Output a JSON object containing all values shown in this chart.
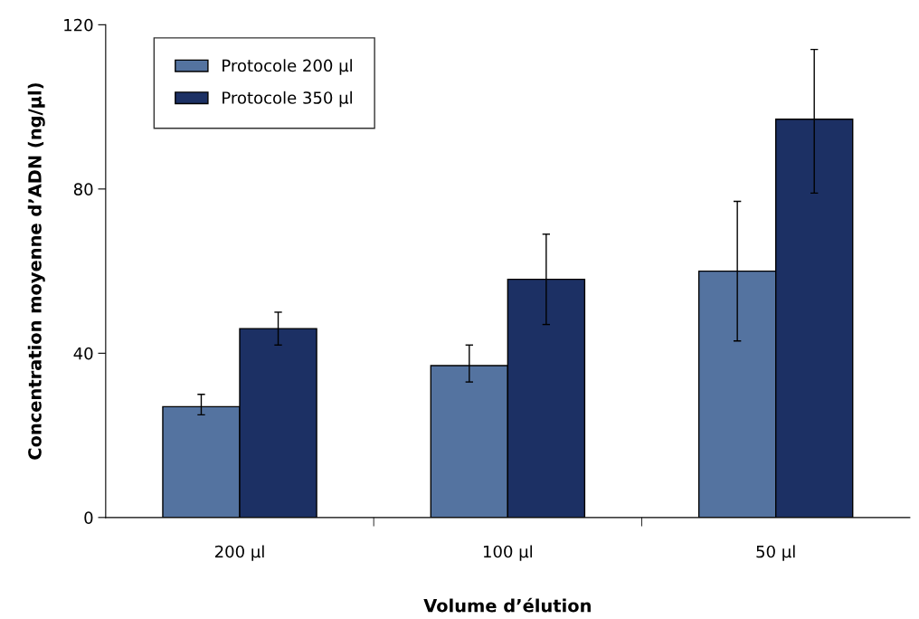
{
  "chart_data": {
    "type": "bar",
    "xlabel": "Volume d’élution",
    "ylabel": "Concentration moyenne d’ADN (ng/µl)",
    "categories": [
      "200 µl",
      "100 µl",
      "50 µl"
    ],
    "series": [
      {
        "name": "Protocole 200 µl",
        "color": "#5473a0",
        "values": [
          27,
          37,
          60
        ],
        "errors": [
          [
            25,
            30
          ],
          [
            33,
            42
          ],
          [
            43,
            77
          ]
        ]
      },
      {
        "name": "Protocole 350 µl",
        "color": "#1c3064",
        "values": [
          46,
          58,
          97
        ],
        "errors": [
          [
            42,
            50
          ],
          [
            47,
            69
          ],
          [
            79,
            114
          ]
        ]
      }
    ],
    "ylim": [
      0,
      120
    ],
    "yticks": [
      0,
      40,
      80,
      120
    ],
    "grid": false,
    "legend": "top left"
  }
}
